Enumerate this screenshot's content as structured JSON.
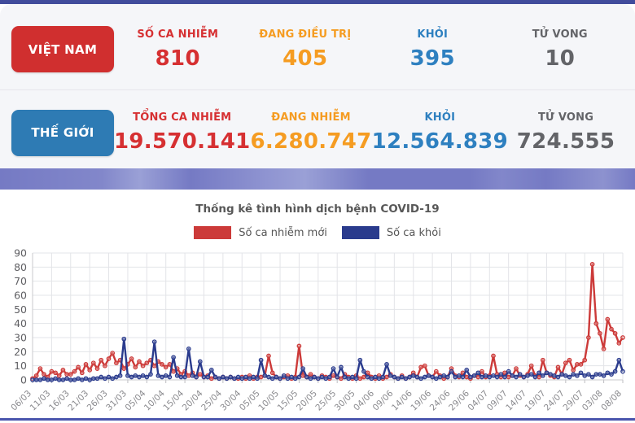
{
  "theme": {
    "topbar_color": "#414c9c",
    "banner_color": "#757ac4",
    "divider_color": "#4a55ad",
    "card_bg": "#f5f6f9"
  },
  "stats": {
    "rows": [
      {
        "id": "vietnam",
        "button_label": "VIỆT NAM",
        "button_color": "#d02f2f",
        "cols": [
          {
            "label": "SỐ CA NHIỄM",
            "value": "810",
            "color": "#d63032"
          },
          {
            "label": "ĐANG ĐIỀU TRỊ",
            "value": "405",
            "color": "#f59c22"
          },
          {
            "label": "KHỎI",
            "value": "395",
            "color": "#2e80c0"
          },
          {
            "label": "TỬ VONG",
            "value": "10",
            "color": "#636468"
          }
        ]
      },
      {
        "id": "the-gioi",
        "button_label": "THẾ GIỚI",
        "button_color": "#2e7bb4",
        "cols": [
          {
            "label": "TỔNG CA NHIỄM",
            "value": "19.570.141",
            "color": "#d63032"
          },
          {
            "label": "ĐANG NHIỄM",
            "value": "6.280.747",
            "color": "#f59c22"
          },
          {
            "label": "KHỎI",
            "value": "12.564.839",
            "color": "#2e80c0"
          },
          {
            "label": "TỬ VONG",
            "value": "724.555",
            "color": "#636468"
          }
        ]
      }
    ]
  },
  "chart": {
    "title": "Thống kê tình hình dịch bệnh COVID-19",
    "legend": [
      {
        "label": "Số ca nhiễm mới"
      },
      {
        "label": "Số ca khỏi"
      }
    ]
  },
  "chart_data": {
    "type": "line",
    "title": "Thống kê tình hình dịch bệnh COVID-19",
    "x_is_daily": true,
    "start_date": "06/03",
    "end_date": "08/08",
    "x_tick_step": 5,
    "x_tick_labels": [
      "06/03",
      "11/03",
      "16/03",
      "21/03",
      "26/03",
      "31/03",
      "05/04",
      "10/04",
      "15/04",
      "20/04",
      "25/04",
      "30/04",
      "05/05",
      "10/05",
      "15/05",
      "20/05",
      "25/05",
      "30/05",
      "04/06",
      "09/06",
      "14/06",
      "19/06",
      "24/06",
      "29/06",
      "04/07",
      "09/07",
      "14/07",
      "19/07",
      "24/07",
      "29/07",
      "03/08",
      "08/08"
    ],
    "ylim": [
      0,
      90
    ],
    "y_ticks": [
      0,
      10,
      20,
      30,
      40,
      50,
      60,
      70,
      80,
      90
    ],
    "grid": true,
    "legend_position": "top",
    "series": [
      {
        "name": "Số ca nhiễm mới",
        "color": "#cc3a39",
        "values": [
          1,
          3,
          8,
          4,
          2,
          6,
          5,
          3,
          7,
          4,
          4,
          6,
          9,
          5,
          11,
          7,
          12,
          8,
          14,
          10,
          15,
          19,
          12,
          14,
          8,
          11,
          15,
          9,
          13,
          10,
          12,
          14,
          10,
          13,
          11,
          9,
          11,
          6,
          8,
          4,
          6,
          3,
          5,
          2,
          4,
          2,
          3,
          1,
          2,
          1,
          2,
          1,
          2,
          1,
          1,
          2,
          1,
          3,
          1,
          2,
          2,
          3,
          17,
          5,
          2,
          1,
          2,
          3,
          1,
          2,
          24,
          3,
          2,
          4,
          2,
          1,
          3,
          2,
          1,
          3,
          2,
          1,
          4,
          2,
          1,
          3,
          1,
          2,
          5,
          2,
          1,
          3,
          1,
          2,
          4,
          2,
          1,
          3,
          1,
          2,
          5,
          2,
          9,
          10,
          3,
          2,
          6,
          3,
          1,
          2,
          8,
          3,
          2,
          5,
          2,
          1,
          3,
          2,
          6,
          2,
          3,
          17,
          4,
          2,
          5,
          2,
          3,
          8,
          3,
          2,
          4,
          10,
          3,
          2,
          14,
          5,
          3,
          2,
          9,
          4,
          12,
          14,
          7,
          11,
          11,
          14,
          30,
          82,
          40,
          33,
          22,
          43,
          36,
          33,
          26,
          30
        ]
      },
      {
        "name": "Số ca khỏi",
        "color": "#2a3b8d",
        "values": [
          0,
          0,
          0,
          1,
          0,
          0,
          1,
          0,
          0,
          1,
          0,
          0,
          1,
          0,
          1,
          0,
          1,
          1,
          2,
          1,
          2,
          1,
          2,
          3,
          29,
          3,
          2,
          3,
          2,
          3,
          2,
          4,
          27,
          3,
          2,
          3,
          2,
          16,
          3,
          2,
          2,
          22,
          3,
          2,
          13,
          2,
          2,
          7,
          2,
          1,
          2,
          1,
          2,
          1,
          2,
          1,
          2,
          1,
          2,
          1,
          14,
          3,
          2,
          1,
          2,
          1,
          3,
          1,
          2,
          1,
          2,
          8,
          2,
          1,
          2,
          1,
          2,
          1,
          2,
          8,
          2,
          9,
          2,
          1,
          2,
          1,
          14,
          6,
          2,
          1,
          2,
          1,
          2,
          11,
          3,
          2,
          1,
          2,
          1,
          2,
          3,
          2,
          1,
          2,
          3,
          2,
          1,
          2,
          3,
          2,
          6,
          2,
          3,
          2,
          7,
          2,
          3,
          5,
          2,
          3,
          2,
          3,
          2,
          4,
          2,
          6,
          3,
          2,
          4,
          2,
          3,
          4,
          2,
          5,
          3,
          5,
          4,
          3,
          2,
          4,
          3,
          2,
          4,
          3,
          5,
          3,
          4,
          2,
          4,
          4,
          3,
          5,
          4,
          6,
          14,
          6
        ]
      }
    ]
  }
}
